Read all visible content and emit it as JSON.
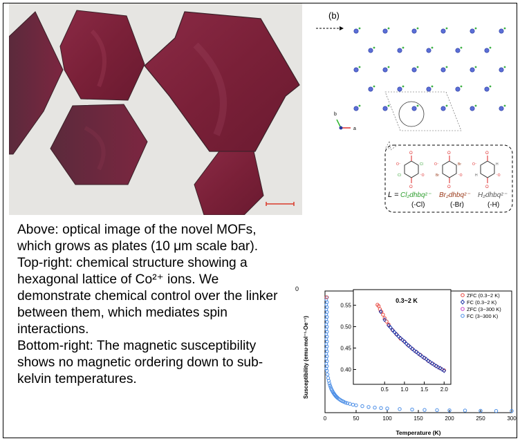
{
  "panel_b": {
    "label": "(b)",
    "axis_b": "b",
    "axis_a": "a",
    "linker_eq": "L =",
    "linkers": [
      {
        "formula": "Cl₂dhbq²⁻",
        "suffix": "(-Cl)",
        "sub": "Cl",
        "color": "#2e9e2e"
      },
      {
        "formula": "Br₂dhbq²⁻",
        "suffix": "(-Br)",
        "sub": "Br",
        "color": "#9a3a1a"
      },
      {
        "formula": "H₂dhbq²⁻",
        "suffix": "(-H)",
        "sub": "H",
        "color": "#555555"
      }
    ]
  },
  "caption": {
    "p1": "Above: optical image of the novel MOFs, which grows as plates (10 μm scale bar).",
    "p2": "Top-right: chemical structure showing a hexagonal lattice of Co²⁺ ions. We demonstrate chemical control over the linker between them, which mediates spin interactions.",
    "p3": "Bottom-right: The magnetic susceptibility shows no magnetic ordering down to sub-kelvin temperatures."
  },
  "chart_data": {
    "type": "scatter",
    "xlabel": "Temperature (K)",
    "ylabel": "Susceptibility (emu·mol⁻¹·Oe⁻¹)",
    "xlim": [
      0,
      300
    ],
    "ylim": [
      0,
      0.58
    ],
    "xticks": [
      0,
      50,
      100,
      150,
      200,
      250,
      300
    ],
    "y_top_label": "0",
    "legend": [
      {
        "name": "ZFC (0.3~2 K)",
        "color": "#e8473f",
        "marker": "circle"
      },
      {
        "name": "FC (0.3~2 K)",
        "color": "#2236a8",
        "marker": "diamond"
      },
      {
        "name": "ZFC (3~300 K)",
        "color": "#c742c7",
        "marker": "circle"
      },
      {
        "name": "FC (3~300 K)",
        "color": "#4a8de6",
        "marker": "circle"
      }
    ],
    "main_series": {
      "x": [
        3,
        4,
        5,
        6,
        7,
        8,
        9,
        10,
        11,
        12,
        13,
        14,
        15,
        16,
        17,
        18,
        19,
        20,
        22,
        24,
        26,
        28,
        30,
        33,
        36,
        40,
        45,
        50,
        60,
        70,
        80,
        90,
        100,
        120,
        140,
        160,
        180,
        200,
        225,
        250,
        275,
        300
      ],
      "y": [
        0.2,
        0.182,
        0.165,
        0.152,
        0.14,
        0.13,
        0.122,
        0.114,
        0.108,
        0.102,
        0.097,
        0.092,
        0.088,
        0.084,
        0.08,
        0.077,
        0.074,
        0.071,
        0.066,
        0.062,
        0.058,
        0.055,
        0.052,
        0.048,
        0.045,
        0.042,
        0.038,
        0.035,
        0.031,
        0.027,
        0.024,
        0.022,
        0.02,
        0.017,
        0.015,
        0.013,
        0.012,
        0.011,
        0.01,
        0.009,
        0.008,
        0.008
      ]
    },
    "low_t_column": {
      "x": 2,
      "y_min": 0.21,
      "y_max": 0.55
    },
    "inset": {
      "title": "0.3~2 K",
      "xlim": [
        0.2,
        2.1
      ],
      "ylim": [
        0.375,
        0.58
      ],
      "xticks": [
        0.5,
        1.0,
        1.5,
        2.0
      ],
      "yticks": [
        0.4,
        0.45,
        0.5,
        0.55
      ],
      "zfc": {
        "x": [
          0.32,
          0.35,
          0.38,
          0.42,
          0.46,
          0.5,
          0.55,
          0.6,
          0.7,
          0.8,
          0.9,
          1.0,
          1.1,
          1.2,
          1.3,
          1.4,
          1.5,
          1.6,
          1.7,
          1.8,
          1.9,
          2.0
        ],
        "y": [
          0.551,
          0.548,
          0.541,
          0.535,
          0.528,
          0.52,
          0.512,
          0.505,
          0.492,
          0.482,
          0.472,
          0.465,
          0.456,
          0.448,
          0.441,
          0.434,
          0.427,
          0.42,
          0.414,
          0.408,
          0.403,
          0.398
        ]
      },
      "fc": {
        "x": [
          0.4,
          0.5,
          0.6,
          0.65,
          0.7,
          0.75,
          0.8,
          0.85,
          0.9,
          0.95,
          1.0,
          1.05,
          1.1,
          1.15,
          1.2,
          1.25,
          1.3,
          1.35,
          1.4,
          1.45,
          1.5,
          1.55,
          1.6,
          1.65,
          1.7,
          1.75,
          1.8,
          1.85,
          1.9,
          1.95,
          2.0
        ],
        "y": [
          0.535,
          0.516,
          0.503,
          0.498,
          0.492,
          0.487,
          0.482,
          0.477,
          0.473,
          0.469,
          0.465,
          0.46,
          0.456,
          0.452,
          0.448,
          0.444,
          0.441,
          0.437,
          0.434,
          0.43,
          0.427,
          0.424,
          0.42,
          0.417,
          0.414,
          0.411,
          0.408,
          0.405,
          0.403,
          0.4,
          0.397
        ]
      }
    }
  }
}
